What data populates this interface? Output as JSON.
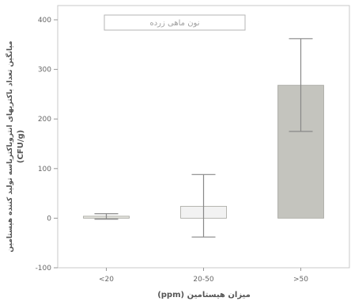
{
  "chart_data": {
    "type": "bar",
    "title": "",
    "xlabel": "میزان هیستامین (ppm)",
    "ylabel": [
      "میانگین تعداد باکتریهای انتروباکتریاسه تولید کننده هیستامین",
      "(CFU/g)"
    ],
    "ylim": [
      -100,
      400
    ],
    "yticks": [
      -100,
      0,
      100,
      200,
      300,
      400
    ],
    "categories": [
      "<20",
      "20-50",
      ">50"
    ],
    "series": [
      {
        "values": [
          4,
          24,
          268
        ],
        "error_low": [
          -2,
          -38,
          175
        ],
        "error_high": [
          9,
          88,
          362
        ]
      }
    ],
    "bar_colors": [
      "#e2e2dc",
      "#f2f2f2",
      "#c4c4be"
    ],
    "error_bar_color": "#888888",
    "legend": {
      "text": "نون ماهی زرده",
      "placement": "top-left"
    },
    "grid": false
  }
}
